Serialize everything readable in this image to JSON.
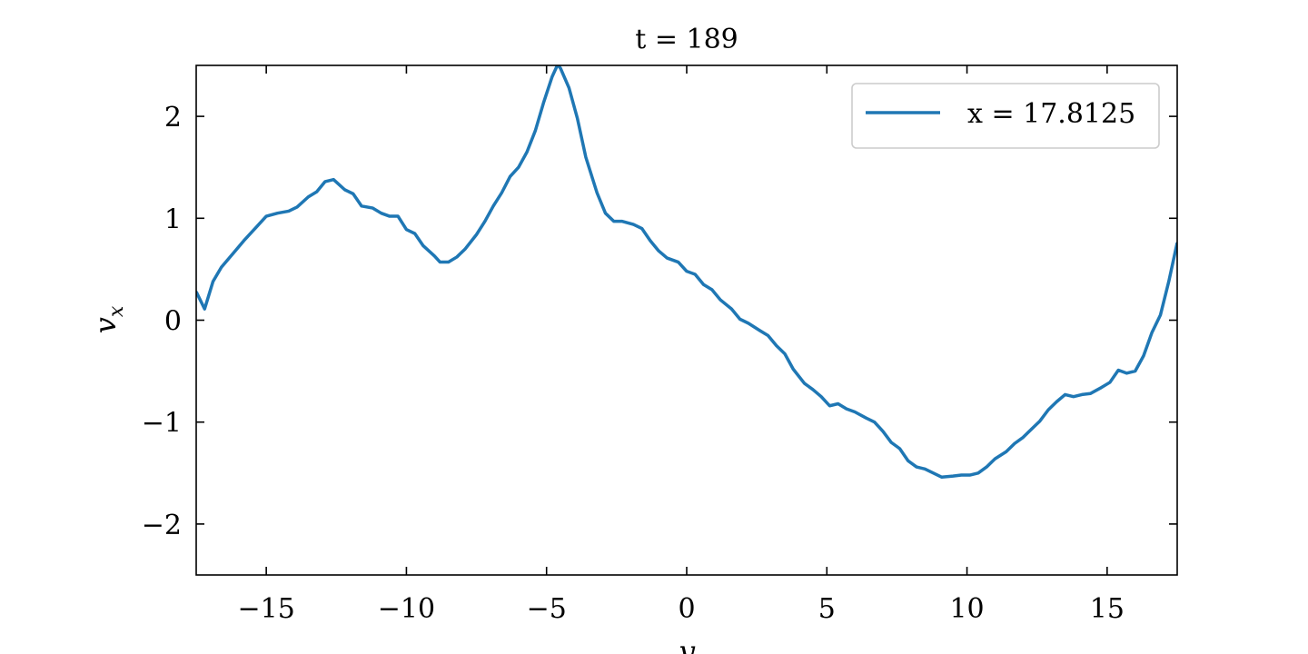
{
  "chart_data": {
    "type": "line",
    "title": "t = 189",
    "xlabel": "y",
    "ylabel": "v",
    "ylabel_subscript": "x",
    "xlim": [
      -17.5,
      17.5
    ],
    "ylim": [
      -2.5,
      2.5
    ],
    "xticks": [
      -15,
      -10,
      -5,
      0,
      5,
      10,
      15
    ],
    "xtick_labels": [
      "−15",
      "−10",
      "−5",
      "0",
      "5",
      "10",
      "15"
    ],
    "yticks": [
      -2,
      -1,
      0,
      1,
      2
    ],
    "ytick_labels": [
      "−2",
      "−1",
      "0",
      "1",
      "2"
    ],
    "grid": false,
    "legend_position": "upper right",
    "series": [
      {
        "name": "x = 17.8125",
        "color": "#1f77b4",
        "x": [
          -17.5,
          -17.2,
          -16.9,
          -16.6,
          -16.2,
          -15.8,
          -15.4,
          -15.0,
          -14.6,
          -14.2,
          -13.9,
          -13.5,
          -13.2,
          -12.9,
          -12.6,
          -12.2,
          -11.9,
          -11.6,
          -11.2,
          -10.9,
          -10.6,
          -10.3,
          -10.0,
          -9.7,
          -9.4,
          -9.0,
          -8.8,
          -8.5,
          -8.2,
          -7.9,
          -7.5,
          -7.2,
          -6.9,
          -6.6,
          -6.3,
          -6.0,
          -5.7,
          -5.4,
          -5.1,
          -4.8,
          -4.6,
          -4.5,
          -4.2,
          -3.9,
          -3.6,
          -3.2,
          -2.9,
          -2.6,
          -2.3,
          -1.9,
          -1.6,
          -1.3,
          -1.0,
          -0.7,
          -0.3,
          0.0,
          0.3,
          0.6,
          0.9,
          1.2,
          1.6,
          1.9,
          2.2,
          2.6,
          2.9,
          3.2,
          3.5,
          3.8,
          4.2,
          4.5,
          4.8,
          5.1,
          5.4,
          5.7,
          6.0,
          6.4,
          6.7,
          7.0,
          7.3,
          7.6,
          7.9,
          8.2,
          8.5,
          8.8,
          9.1,
          9.5,
          9.8,
          10.1,
          10.4,
          10.7,
          11.0,
          11.4,
          11.7,
          12.0,
          12.3,
          12.6,
          12.9,
          13.2,
          13.5,
          13.8,
          14.1,
          14.4,
          14.8,
          15.1,
          15.4,
          15.7,
          16.0,
          16.3,
          16.6,
          16.9,
          17.2,
          17.5
        ],
        "values": [
          0.28,
          0.11,
          0.38,
          0.52,
          0.65,
          0.78,
          0.9,
          1.02,
          1.05,
          1.07,
          1.11,
          1.21,
          1.26,
          1.36,
          1.38,
          1.28,
          1.24,
          1.12,
          1.1,
          1.05,
          1.02,
          1.02,
          0.89,
          0.85,
          0.73,
          0.63,
          0.57,
          0.57,
          0.62,
          0.7,
          0.84,
          0.97,
          1.12,
          1.25,
          1.41,
          1.5,
          1.65,
          1.86,
          2.14,
          2.39,
          2.51,
          2.47,
          2.28,
          1.98,
          1.6,
          1.25,
          1.05,
          0.97,
          0.97,
          0.94,
          0.9,
          0.78,
          0.68,
          0.61,
          0.57,
          0.48,
          0.45,
          0.35,
          0.3,
          0.2,
          0.11,
          0.01,
          -0.03,
          -0.1,
          -0.15,
          -0.25,
          -0.33,
          -0.48,
          -0.62,
          -0.68,
          -0.75,
          -0.84,
          -0.82,
          -0.87,
          -0.9,
          -0.96,
          -1.0,
          -1.09,
          -1.2,
          -1.26,
          -1.38,
          -1.44,
          -1.46,
          -1.5,
          -1.54,
          -1.53,
          -1.52,
          -1.52,
          -1.5,
          -1.44,
          -1.36,
          -1.29,
          -1.21,
          -1.15,
          -1.07,
          -0.99,
          -0.88,
          -0.8,
          -0.73,
          -0.75,
          -0.73,
          -0.72,
          -0.66,
          -0.61,
          -0.49,
          -0.52,
          -0.5,
          -0.35,
          -0.12,
          0.05,
          0.38,
          0.76
        ]
      }
    ]
  }
}
